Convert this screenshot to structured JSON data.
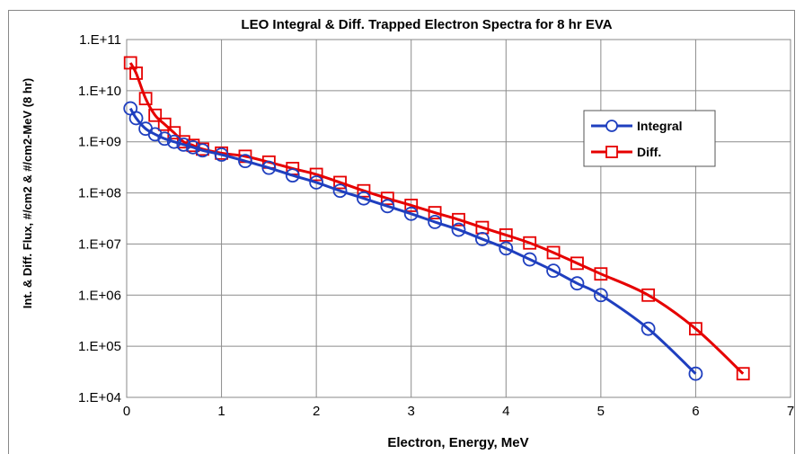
{
  "chart_data": {
    "type": "line",
    "title": "LEO Integral & Diff. Trapped Electron Spectra for 8 hr EVA",
    "xlabel": "Electron, Energy, MeV",
    "ylabel": "Int. & Diff. Flux, #/cm2 & #/cm2-MeV (8 hr)",
    "xlim": [
      0,
      7
    ],
    "ylim": [
      10000,
      100000000000
    ],
    "yscale": "log",
    "grid": true,
    "legend_position": "right",
    "x_tick_labels": [
      "0",
      "1",
      "2",
      "3",
      "4",
      "5",
      "6",
      "7"
    ],
    "y_tick_labels": [
      "1.E+04",
      "1.E+05",
      "1.E+06",
      "1.E+07",
      "1.E+08",
      "1.E+09",
      "1.E+10",
      "1.E+11"
    ],
    "series": [
      {
        "name": "Integral",
        "color": "#1f3fbf",
        "marker": "circle",
        "x": [
          0.04,
          0.1,
          0.2,
          0.3,
          0.4,
          0.5,
          0.6,
          0.7,
          0.8,
          1.0,
          1.25,
          1.5,
          1.75,
          2.0,
          2.25,
          2.5,
          2.75,
          3.0,
          3.25,
          3.5,
          3.75,
          4.0,
          4.25,
          4.5,
          4.75,
          5.0,
          5.5,
          6.0
        ],
        "y": [
          4500000000,
          2900000000,
          1800000000,
          1400000000,
          1150000000,
          1000000000,
          880000000,
          780000000,
          680000000,
          560000000,
          420000000,
          310000000,
          220000000,
          160000000,
          110000000,
          78000000,
          55000000,
          39000000,
          27000000,
          19000000,
          12500000,
          8200000,
          5000000,
          3000000,
          1700000,
          1000000,
          220000,
          29000
        ]
      },
      {
        "name": "Diff.",
        "color": "#e60000",
        "marker": "square",
        "x": [
          0.04,
          0.1,
          0.2,
          0.3,
          0.4,
          0.5,
          0.6,
          0.7,
          0.8,
          1.0,
          1.25,
          1.5,
          1.75,
          2.0,
          2.25,
          2.5,
          2.75,
          3.0,
          3.25,
          3.5,
          3.75,
          4.0,
          4.25,
          4.5,
          4.75,
          5.0,
          5.5,
          6.0,
          6.5
        ],
        "y": [
          35000000000,
          22000000000,
          7000000000,
          3300000000,
          2200000000,
          1500000000,
          1000000000,
          850000000,
          720000000,
          600000000,
          520000000,
          400000000,
          300000000,
          230000000,
          160000000,
          110000000,
          78000000,
          57000000,
          41000000,
          30000000,
          21000000,
          15000000,
          10500000,
          6800000,
          4200000,
          2600000,
          1000000,
          220000,
          29000
        ]
      }
    ]
  }
}
